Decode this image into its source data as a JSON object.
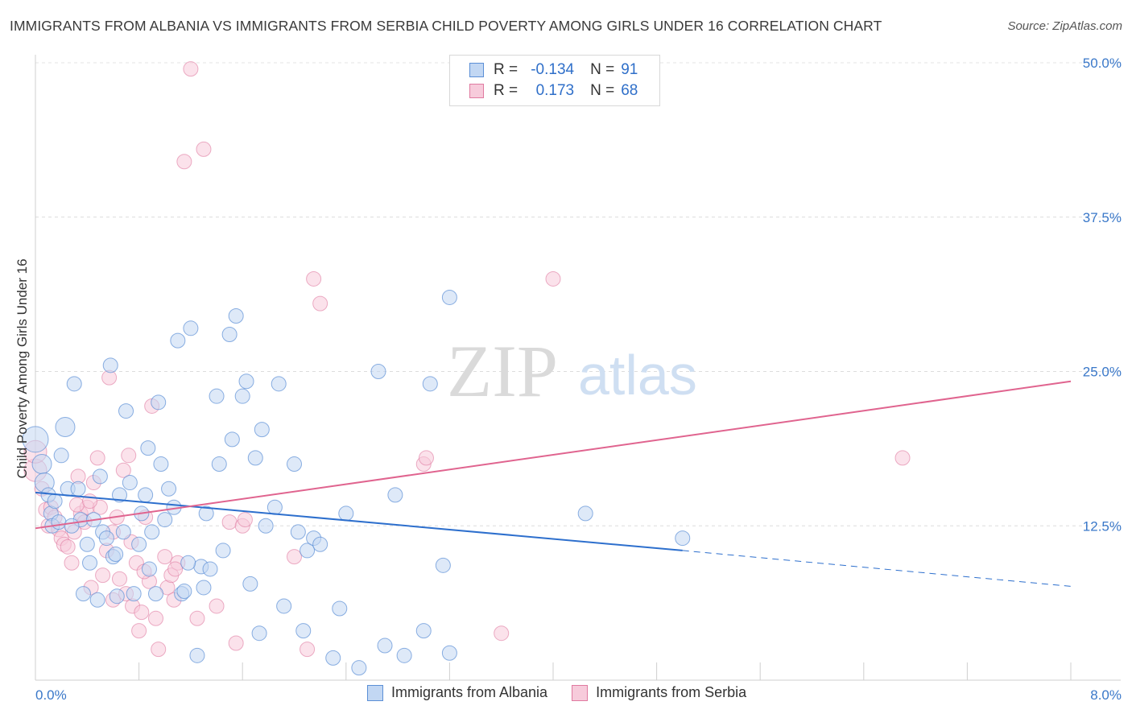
{
  "title": "IMMIGRANTS FROM ALBANIA VS IMMIGRANTS FROM SERBIA CHILD POVERTY AMONG GIRLS UNDER 16 CORRELATION CHART",
  "source": "Source: ZipAtlas.com",
  "legend_top": {
    "row1": {
      "r_label": "R =",
      "r_value": "-0.134",
      "n_label": "N =",
      "n_value": "91"
    },
    "row2": {
      "r_label": "R =",
      "r_value": "0.173",
      "n_label": "N =",
      "n_value": "68"
    }
  },
  "watermark": {
    "zip": "ZIP",
    "atlas": "atlas"
  },
  "colors": {
    "albania": "#5b8fd6",
    "albania_fill": "#c2d7f3",
    "serbia": "#e07aa0",
    "serbia_fill": "#f7cbdb",
    "albania_line": "#2d6fcd",
    "serbia_line": "#e0648f",
    "tick_text": "#3a78c9"
  },
  "chart_data": {
    "type": "scatter",
    "title": "IMMIGRANTS FROM ALBANIA VS IMMIGRANTS FROM SERBIA CHILD POVERTY AMONG GIRLS UNDER 16 CORRELATION CHART",
    "xlabel": "",
    "ylabel": "Child Poverty Among Girls Under 16",
    "xlim": [
      0,
      8
    ],
    "ylim": [
      0,
      50
    ],
    "x_tick_labels": [
      "0.0%",
      "8.0%"
    ],
    "y_ticks": [
      12.5,
      25.0,
      37.5,
      50.0
    ],
    "y_tick_labels": [
      "12.5%",
      "25.0%",
      "37.5%",
      "50.0%"
    ],
    "grid": "horizontal dashed",
    "legend": "bottom-center",
    "series": [
      {
        "name": "Immigrants from Albania",
        "r": -0.134,
        "n": 91,
        "trend": {
          "x0": 0.0,
          "y0": 15.2,
          "x1": 5.0,
          "y1": 10.5,
          "dashed_to_x": 8.0,
          "dashed_to_y": 7.6
        },
        "points": [
          [
            0.0,
            19.5
          ],
          [
            0.05,
            17.5
          ],
          [
            0.07,
            16.0
          ],
          [
            0.1,
            15.0
          ],
          [
            0.12,
            13.5
          ],
          [
            0.13,
            12.5
          ],
          [
            0.15,
            14.5
          ],
          [
            0.2,
            18.2
          ],
          [
            0.23,
            20.5
          ],
          [
            0.25,
            15.5
          ],
          [
            0.3,
            24.0
          ],
          [
            0.33,
            15.5
          ],
          [
            0.35,
            13.0
          ],
          [
            0.37,
            7.0
          ],
          [
            0.4,
            11.0
          ],
          [
            0.42,
            9.5
          ],
          [
            0.45,
            13.0
          ],
          [
            0.48,
            6.5
          ],
          [
            0.5,
            16.5
          ],
          [
            0.52,
            12.0
          ],
          [
            0.55,
            11.5
          ],
          [
            0.58,
            25.5
          ],
          [
            0.6,
            10.0
          ],
          [
            0.63,
            6.8
          ],
          [
            0.65,
            15.0
          ],
          [
            0.68,
            12.0
          ],
          [
            0.7,
            21.8
          ],
          [
            0.73,
            16.0
          ],
          [
            0.76,
            7.0
          ],
          [
            0.8,
            11.0
          ],
          [
            0.82,
            13.5
          ],
          [
            0.85,
            15.0
          ],
          [
            0.87,
            18.8
          ],
          [
            0.9,
            12.0
          ],
          [
            0.93,
            7.0
          ],
          [
            0.95,
            22.5
          ],
          [
            0.97,
            17.5
          ],
          [
            1.0,
            13.0
          ],
          [
            1.03,
            15.5
          ],
          [
            1.07,
            14.0
          ],
          [
            1.1,
            27.5
          ],
          [
            1.13,
            7.0
          ],
          [
            1.15,
            7.2
          ],
          [
            1.2,
            28.5
          ],
          [
            1.25,
            2.0
          ],
          [
            1.28,
            9.2
          ],
          [
            1.3,
            7.5
          ],
          [
            1.32,
            13.5
          ],
          [
            1.35,
            9.0
          ],
          [
            1.4,
            23.0
          ],
          [
            1.42,
            17.5
          ],
          [
            1.45,
            10.5
          ],
          [
            1.5,
            28.0
          ],
          [
            1.52,
            19.5
          ],
          [
            1.55,
            29.5
          ],
          [
            1.6,
            23.0
          ],
          [
            1.63,
            24.2
          ],
          [
            1.66,
            7.8
          ],
          [
            1.7,
            18.0
          ],
          [
            1.73,
            3.8
          ],
          [
            1.75,
            20.3
          ],
          [
            1.78,
            12.5
          ],
          [
            1.85,
            14.0
          ],
          [
            1.88,
            24.0
          ],
          [
            1.92,
            6.0
          ],
          [
            2.0,
            17.5
          ],
          [
            2.03,
            12.0
          ],
          [
            2.07,
            4.0
          ],
          [
            2.1,
            10.5
          ],
          [
            2.15,
            11.5
          ],
          [
            2.2,
            11.0
          ],
          [
            2.3,
            1.8
          ],
          [
            2.35,
            5.8
          ],
          [
            2.4,
            13.5
          ],
          [
            2.5,
            1.0
          ],
          [
            2.65,
            25.0
          ],
          [
            2.7,
            2.8
          ],
          [
            2.78,
            15.0
          ],
          [
            2.85,
            2.0
          ],
          [
            3.0,
            4.0
          ],
          [
            3.05,
            24.0
          ],
          [
            3.15,
            9.3
          ],
          [
            3.2,
            31.0
          ],
          [
            3.2,
            2.2
          ],
          [
            4.25,
            13.5
          ],
          [
            5.0,
            11.5
          ],
          [
            0.18,
            12.8
          ],
          [
            0.28,
            12.5
          ],
          [
            0.62,
            10.2
          ],
          [
            0.88,
            9.0
          ],
          [
            1.18,
            9.5
          ]
        ]
      },
      {
        "name": "Immigrants from Serbia",
        "r": 0.173,
        "n": 68,
        "trend": {
          "x0": 0.0,
          "y0": 12.3,
          "x1": 8.0,
          "y1": 24.2
        },
        "points": [
          [
            0.0,
            17.0
          ],
          [
            0.0,
            18.5
          ],
          [
            0.05,
            15.5
          ],
          [
            0.08,
            13.8
          ],
          [
            0.1,
            12.5
          ],
          [
            0.12,
            14.0
          ],
          [
            0.15,
            13.2
          ],
          [
            0.18,
            12.2
          ],
          [
            0.2,
            11.5
          ],
          [
            0.22,
            11.0
          ],
          [
            0.25,
            10.8
          ],
          [
            0.28,
            9.5
          ],
          [
            0.3,
            12.0
          ],
          [
            0.33,
            16.5
          ],
          [
            0.35,
            13.5
          ],
          [
            0.38,
            12.8
          ],
          [
            0.4,
            14.0
          ],
          [
            0.43,
            7.5
          ],
          [
            0.45,
            16.0
          ],
          [
            0.48,
            18.0
          ],
          [
            0.5,
            14.0
          ],
          [
            0.52,
            8.5
          ],
          [
            0.55,
            10.5
          ],
          [
            0.57,
            24.5
          ],
          [
            0.6,
            6.5
          ],
          [
            0.63,
            13.2
          ],
          [
            0.65,
            8.2
          ],
          [
            0.68,
            17.0
          ],
          [
            0.7,
            7.0
          ],
          [
            0.72,
            18.2
          ],
          [
            0.75,
            6.0
          ],
          [
            0.78,
            9.5
          ],
          [
            0.8,
            4.0
          ],
          [
            0.82,
            5.5
          ],
          [
            0.85,
            13.2
          ],
          [
            0.88,
            8.0
          ],
          [
            0.9,
            22.2
          ],
          [
            0.93,
            5.0
          ],
          [
            0.95,
            2.5
          ],
          [
            1.0,
            10.0
          ],
          [
            1.02,
            7.5
          ],
          [
            1.05,
            8.5
          ],
          [
            1.07,
            6.5
          ],
          [
            1.1,
            9.5
          ],
          [
            1.15,
            42.0
          ],
          [
            1.2,
            49.5
          ],
          [
            1.3,
            43.0
          ],
          [
            1.4,
            6.0
          ],
          [
            1.5,
            12.8
          ],
          [
            1.55,
            3.0
          ],
          [
            1.6,
            12.5
          ],
          [
            1.62,
            13.0
          ],
          [
            2.0,
            10.0
          ],
          [
            2.1,
            2.5
          ],
          [
            2.15,
            32.5
          ],
          [
            2.2,
            30.5
          ],
          [
            3.0,
            17.5
          ],
          [
            3.02,
            18.0
          ],
          [
            3.6,
            3.8
          ],
          [
            4.0,
            32.5
          ],
          [
            6.7,
            18.0
          ],
          [
            0.32,
            14.2
          ],
          [
            0.42,
            14.5
          ],
          [
            0.6,
            12.0
          ],
          [
            0.74,
            11.2
          ],
          [
            0.84,
            8.8
          ],
          [
            1.08,
            9.0
          ],
          [
            1.25,
            5.0
          ]
        ]
      }
    ]
  },
  "bottom_legend": {
    "albania": "Immigrants from Albania",
    "serbia": "Immigrants from Serbia"
  }
}
